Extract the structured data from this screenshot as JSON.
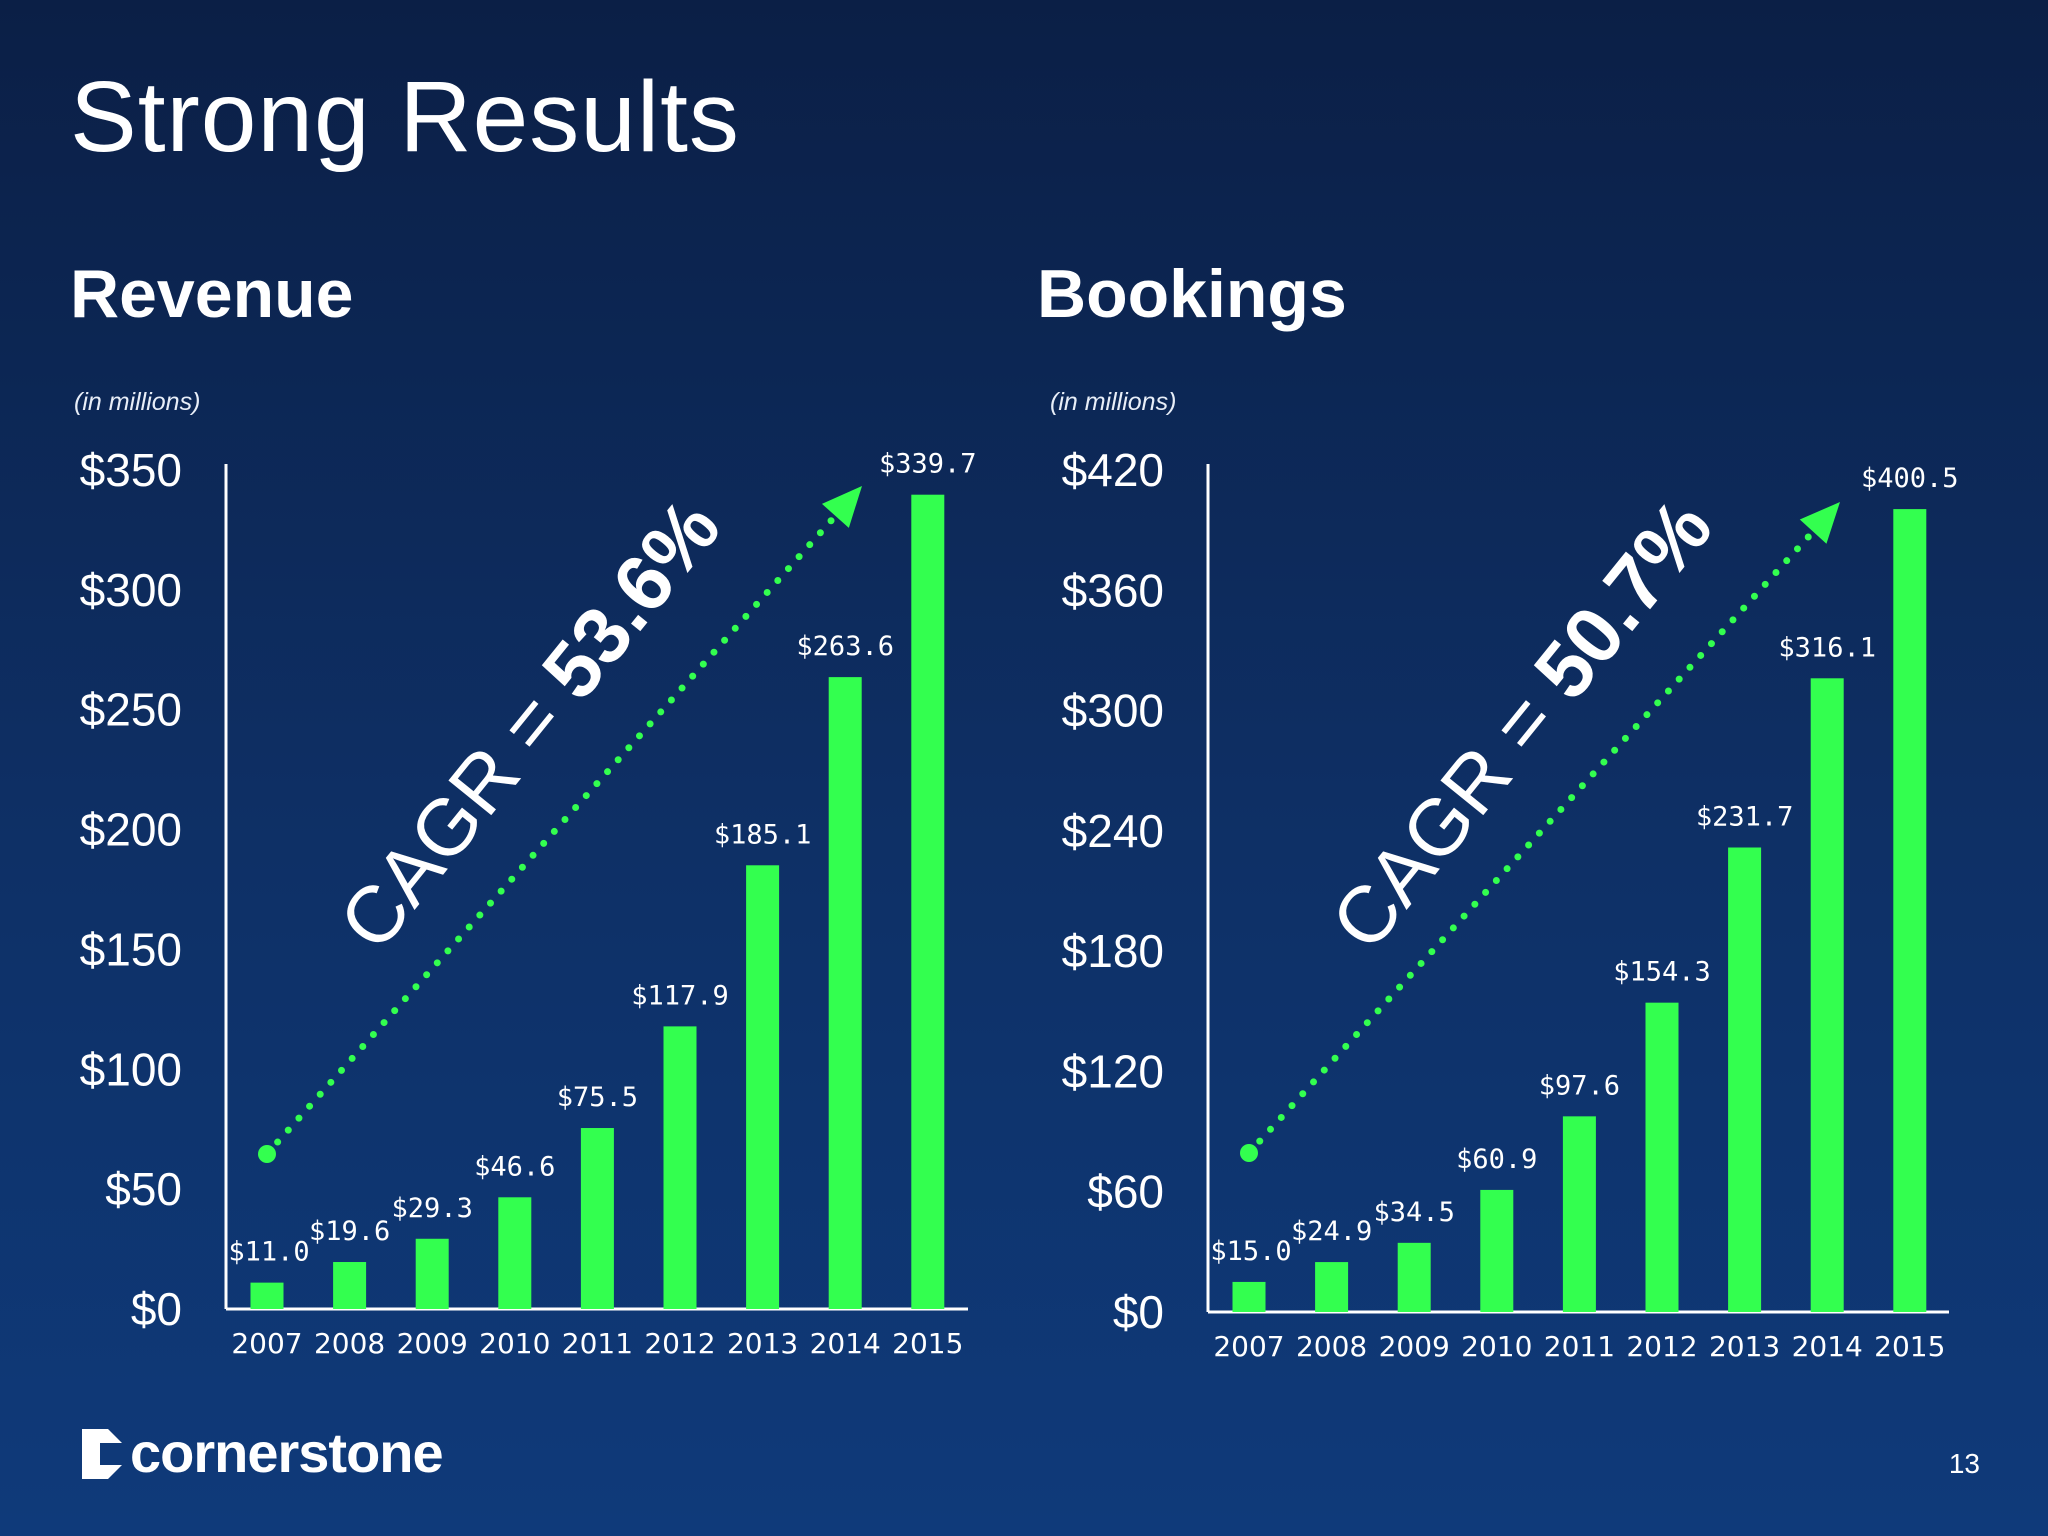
{
  "slide": {
    "title": "Strong Results",
    "page_number": "13",
    "logo_text": "cornerstone"
  },
  "colors": {
    "bar": "#33ff4f",
    "arrow": "#33ff4f",
    "axis": "#ffffff",
    "background": "#0e3066"
  },
  "chart_data": [
    {
      "type": "bar",
      "title": "Revenue",
      "subtitle": "(in millions)",
      "categories": [
        "2007",
        "2008",
        "2009",
        "2010",
        "2011",
        "2012",
        "2013",
        "2014",
        "2015"
      ],
      "values": [
        11.0,
        19.6,
        29.3,
        46.6,
        75.5,
        117.9,
        185.1,
        263.6,
        339.7
      ],
      "data_labels": [
        "$11.0",
        "$19.6",
        "$29.3",
        "$46.6",
        "$75.5",
        "$117.9",
        "$185.1",
        "$263.6",
        "$339.7"
      ],
      "yticks": [
        0,
        50,
        100,
        150,
        200,
        250,
        300,
        350
      ],
      "ytick_labels": [
        "$0",
        "$50",
        "$100",
        "$150",
        "$200",
        "$250",
        "$300",
        "$350"
      ],
      "ylim": [
        0,
        350
      ],
      "annotation": {
        "prefix": "CAGR = ",
        "value": "53.6%"
      },
      "grid": false,
      "legend": "none"
    },
    {
      "type": "bar",
      "title": "Bookings",
      "subtitle": "(in millions)",
      "categories": [
        "2007",
        "2008",
        "2009",
        "2010",
        "2011",
        "2012",
        "2013",
        "2014",
        "2015"
      ],
      "values": [
        15.0,
        24.9,
        34.5,
        60.9,
        97.6,
        154.3,
        231.7,
        316.1,
        400.5
      ],
      "data_labels": [
        "$15.0",
        "$24.9",
        "$34.5",
        "$60.9",
        "$97.6",
        "$154.3",
        "$231.7",
        "$316.1",
        "$400.5"
      ],
      "yticks": [
        0,
        60,
        120,
        180,
        240,
        300,
        360,
        420
      ],
      "ytick_labels": [
        "$0",
        "$60",
        "$120",
        "$180",
        "$240",
        "$300",
        "$360",
        "$420"
      ],
      "ylim": [
        0,
        420
      ],
      "annotation": {
        "prefix": "CAGR = ",
        "value": "50.7%"
      },
      "grid": false,
      "legend": "none"
    }
  ]
}
